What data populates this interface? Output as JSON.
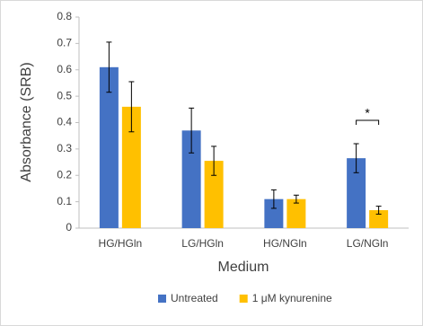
{
  "chart_data": {
    "type": "bar",
    "x_label": "Medium",
    "y_label": "Absorbance (SRB)",
    "categories": [
      "HG/HGln",
      "LG/HGln",
      "HG/NGln",
      "LG/NGln"
    ],
    "series": [
      {
        "name": "Untreated",
        "color": "#4472c4",
        "values": [
          0.61,
          0.37,
          0.11,
          0.265
        ],
        "errors": [
          0.095,
          0.085,
          0.035,
          0.055
        ]
      },
      {
        "name": "1 μM kynurenine",
        "color": "#ffc000",
        "values": [
          0.46,
          0.255,
          0.11,
          0.068
        ],
        "errors": [
          0.095,
          0.055,
          0.015,
          0.015
        ]
      }
    ],
    "ylim": [
      0,
      0.8
    ],
    "yticks": [
      0,
      0.1,
      0.2,
      0.3,
      0.4,
      0.5,
      0.6,
      0.7,
      0.8
    ],
    "grid": false,
    "legend": "bottom",
    "annotations": [
      {
        "text": "*",
        "category": 3
      }
    ]
  }
}
